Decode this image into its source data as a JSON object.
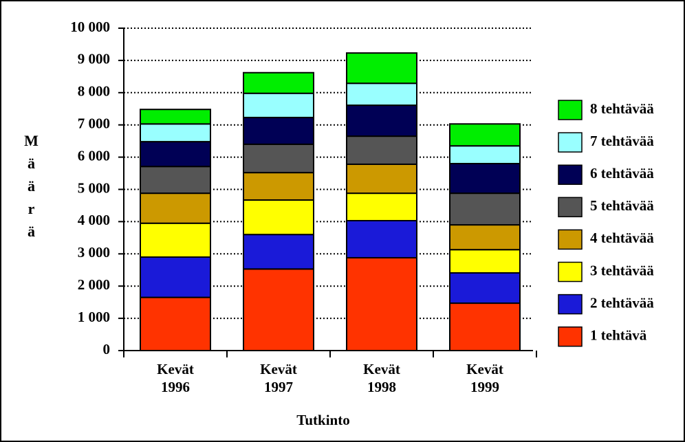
{
  "chart_data": {
    "type": "stacked_bar",
    "x_label": "Tutkinto",
    "y_label": "Määrä",
    "categories": [
      "Kevät 1996",
      "Kevät 1997",
      "Kevät 1998",
      "Kevät 1999"
    ],
    "series": [
      {
        "name": "1 tehtävä",
        "color": "#ff3300",
        "values": [
          1650,
          2530,
          2880,
          1470
        ]
      },
      {
        "name": "2 tehtävää",
        "color": "#1a1ad8",
        "values": [
          1250,
          1070,
          1150,
          940
        ]
      },
      {
        "name": "3 tehtävää",
        "color": "#ffff00",
        "values": [
          1050,
          1070,
          850,
          720
        ]
      },
      {
        "name": "4 tehtävää",
        "color": "#cc9900",
        "values": [
          930,
          850,
          900,
          770
        ]
      },
      {
        "name": "5 tehtävää",
        "color": "#555555",
        "values": [
          830,
          880,
          870,
          980
        ]
      },
      {
        "name": "6 tehtävää",
        "color": "#000055",
        "values": [
          770,
          830,
          960,
          920
        ]
      },
      {
        "name": "7 tehtävää",
        "color": "#99ffff",
        "values": [
          550,
          750,
          680,
          550
        ]
      },
      {
        "name": "8 tehtävää",
        "color": "#00ee00",
        "values": [
          450,
          640,
          940,
          680
        ]
      }
    ],
    "ylim": [
      0,
      10000
    ],
    "yticks": [
      0,
      {
        "value": 1000,
        "label": "1 000"
      },
      {
        "value": 2000,
        "label": "2 000"
      },
      {
        "value": 3000,
        "label": "3 000"
      },
      {
        "value": 4000,
        "label": "4 000"
      },
      {
        "value": 5000,
        "label": "5 000"
      },
      {
        "value": 6000,
        "label": "6 000"
      },
      {
        "value": 7000,
        "label": "7 000"
      },
      {
        "value": 8000,
        "label": "8 000"
      },
      {
        "value": 9000,
        "label": "9 000"
      },
      {
        "value": 10000,
        "label": "10 000"
      }
    ],
    "grid": true,
    "legend": "right"
  }
}
